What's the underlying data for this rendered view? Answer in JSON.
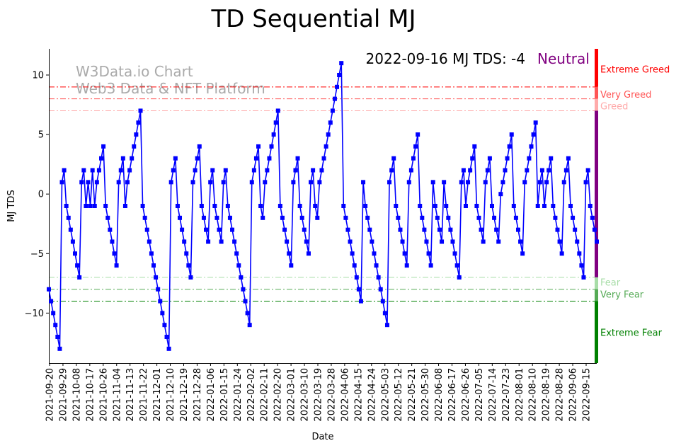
{
  "chart_data": {
    "type": "line",
    "title": "TD Sequential MJ",
    "xlabel": "Date",
    "ylabel": "MJ TDS",
    "ylim": [
      -14.2,
      12.2
    ],
    "yticks": [
      -10,
      -5,
      0,
      5,
      10
    ],
    "watermark": [
      "W3Data.io Chart",
      "Web3 Data & NFT Platform"
    ],
    "annotation": {
      "text": "2022-09-16 MJ TDS: -4",
      "status": "Neutral",
      "status_color": "#800080"
    },
    "x_labels": [
      "2021-09-20",
      "2021-09-29",
      "2021-10-08",
      "2021-10-17",
      "2021-10-26",
      "2021-11-04",
      "2021-11-13",
      "2021-11-22",
      "2021-12-01",
      "2021-12-10",
      "2021-12-19",
      "2021-12-28",
      "2022-01-06",
      "2022-01-15",
      "2022-01-24",
      "2022-02-02",
      "2022-02-11",
      "2022-02-20",
      "2022-03-01",
      "2022-03-10",
      "2022-03-19",
      "2022-03-28",
      "2022-04-06",
      "2022-04-15",
      "2022-04-24",
      "2022-05-03",
      "2022-05-12",
      "2022-05-21",
      "2022-05-30",
      "2022-06-08",
      "2022-06-17",
      "2022-06-26",
      "2022-07-05",
      "2022-07-14",
      "2022-07-23",
      "2022-08-01",
      "2022-08-10",
      "2022-08-19",
      "2022-08-28",
      "2022-09-06",
      "2022-09-15"
    ],
    "thresholds": [
      {
        "name": "Extreme Greed",
        "value": 9,
        "color": "#ff0000",
        "label_value": 10.5
      },
      {
        "name": "Very Greed",
        "value": 8,
        "color": "#ff5555",
        "label_value": 8.4
      },
      {
        "name": "Greed",
        "value": 7,
        "color": "#ffaaaa",
        "label_value": 7.4
      },
      {
        "name": "Fear",
        "value": -7,
        "color": "#a8dda8",
        "label_value": -7.4
      },
      {
        "name": "Very Fear",
        "value": -8,
        "color": "#55aa55",
        "label_value": -8.4
      },
      {
        "name": "Extreme Fear",
        "value": -9,
        "color": "#008000",
        "label_value": -11.6
      }
    ],
    "zones": [
      {
        "from": 9,
        "to": 12.2,
        "color": "#ff0000"
      },
      {
        "from": 8,
        "to": 9,
        "color": "#ff5555"
      },
      {
        "from": 7,
        "to": 8,
        "color": "#ffaaaa"
      },
      {
        "from": -7,
        "to": 7,
        "color": "#800080"
      },
      {
        "from": -8,
        "to": -7,
        "color": "#a8dda8"
      },
      {
        "from": -9,
        "to": -8,
        "color": "#55aa55"
      },
      {
        "from": -14.2,
        "to": -9,
        "color": "#008000"
      }
    ],
    "series": [
      {
        "name": "MJ TDS",
        "color": "#0000ff",
        "values": [
          -8,
          -9,
          -10,
          -11,
          -12,
          -13,
          1,
          2,
          -1,
          -2,
          -3,
          -4,
          -5,
          -6,
          -7,
          1,
          2,
          -1,
          1,
          -1,
          2,
          -1,
          1,
          2,
          3,
          4,
          -1,
          -2,
          -3,
          -4,
          -5,
          -6,
          1,
          2,
          3,
          -1,
          1,
          2,
          3,
          4,
          5,
          6,
          7,
          -1,
          -2,
          -3,
          -4,
          -5,
          -6,
          -7,
          -8,
          -9,
          -10,
          -11,
          -12,
          -13,
          1,
          2,
          3,
          -1,
          -2,
          -3,
          -4,
          -5,
          -6,
          -7,
          1,
          2,
          3,
          4,
          -1,
          -2,
          -3,
          -4,
          1,
          2,
          -1,
          -2,
          -3,
          -4,
          1,
          2,
          -1,
          -2,
          -3,
          -4,
          -5,
          -6,
          -7,
          -8,
          -9,
          -10,
          -11,
          1,
          2,
          3,
          4,
          -1,
          -2,
          1,
          2,
          3,
          4,
          5,
          6,
          7,
          -1,
          -2,
          -3,
          -4,
          -5,
          -6,
          1,
          2,
          3,
          -1,
          -2,
          -3,
          -4,
          -5,
          1,
          2,
          -1,
          -2,
          1,
          2,
          3,
          4,
          5,
          6,
          7,
          8,
          9,
          10,
          11,
          -1,
          -2,
          -3,
          -4,
          -5,
          -6,
          -7,
          -8,
          -9,
          1,
          -1,
          -2,
          -3,
          -4,
          -5,
          -6,
          -7,
          -8,
          -9,
          -10,
          -11,
          1,
          2,
          3,
          -1,
          -2,
          -3,
          -4,
          -5,
          -6,
          1,
          2,
          3,
          4,
          5,
          -1,
          -2,
          -3,
          -4,
          -5,
          -6,
          1,
          -1,
          -2,
          -3,
          -4,
          1,
          -1,
          -2,
          -3,
          -4,
          -5,
          -6,
          -7,
          1,
          2,
          -1,
          1,
          2,
          3,
          4,
          -1,
          -2,
          -3,
          -4,
          1,
          2,
          3,
          -1,
          -2,
          -3,
          -4,
          0,
          1,
          2,
          3,
          4,
          5,
          -1,
          -2,
          -3,
          -4,
          -5,
          1,
          2,
          3,
          4,
          5,
          6,
          -1,
          1,
          2,
          -1,
          1,
          2,
          3,
          -1,
          -2,
          -3,
          -4,
          -5,
          1,
          2,
          3,
          -1,
          -2,
          -3,
          -4,
          -5,
          -6,
          -7,
          1,
          2,
          -1,
          -2,
          -3,
          -4
        ]
      }
    ]
  }
}
